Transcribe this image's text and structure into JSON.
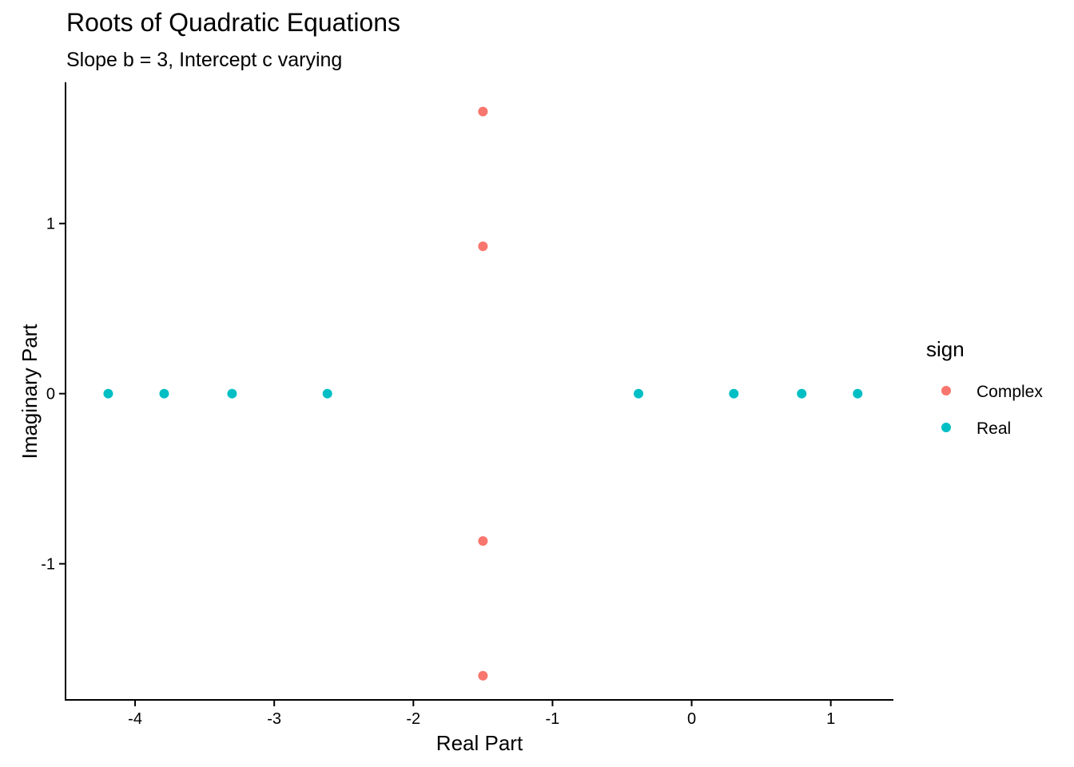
{
  "chart_data": {
    "type": "scatter",
    "title": "Roots of Quadratic Equations",
    "subtitle": "Slope b = 3, Intercept c varying",
    "xlabel": "Real Part",
    "ylabel": "Imaginary Part",
    "xlim": [
      -4.5,
      1.45
    ],
    "ylim": [
      -1.8,
      1.83
    ],
    "x_ticks": [
      -4,
      -3,
      -2,
      -1,
      0,
      1
    ],
    "x_tick_labels": [
      "-4",
      "-3",
      "-2",
      "-1",
      "0",
      "1"
    ],
    "y_ticks": [
      -1,
      0,
      1
    ],
    "y_tick_labels": [
      "-1",
      "0",
      "1"
    ],
    "grid": false,
    "legend": {
      "title": "sign",
      "position": "right",
      "entries": [
        "Complex",
        "Real"
      ]
    },
    "series": [
      {
        "name": "Complex",
        "color": "#F8766D",
        "points": [
          {
            "x": -1.5,
            "y": 1.658
          },
          {
            "x": -1.5,
            "y": 0.866
          },
          {
            "x": -1.5,
            "y": -0.866
          },
          {
            "x": -1.5,
            "y": -1.658
          }
        ]
      },
      {
        "name": "Real",
        "color": "#00BFC4",
        "points": [
          {
            "x": -4.193,
            "y": 0
          },
          {
            "x": -3.791,
            "y": 0
          },
          {
            "x": -3.303,
            "y": 0
          },
          {
            "x": -2.618,
            "y": 0
          },
          {
            "x": -0.382,
            "y": 0
          },
          {
            "x": 0.303,
            "y": 0
          },
          {
            "x": 0.791,
            "y": 0
          },
          {
            "x": 1.193,
            "y": 0
          }
        ]
      }
    ]
  }
}
